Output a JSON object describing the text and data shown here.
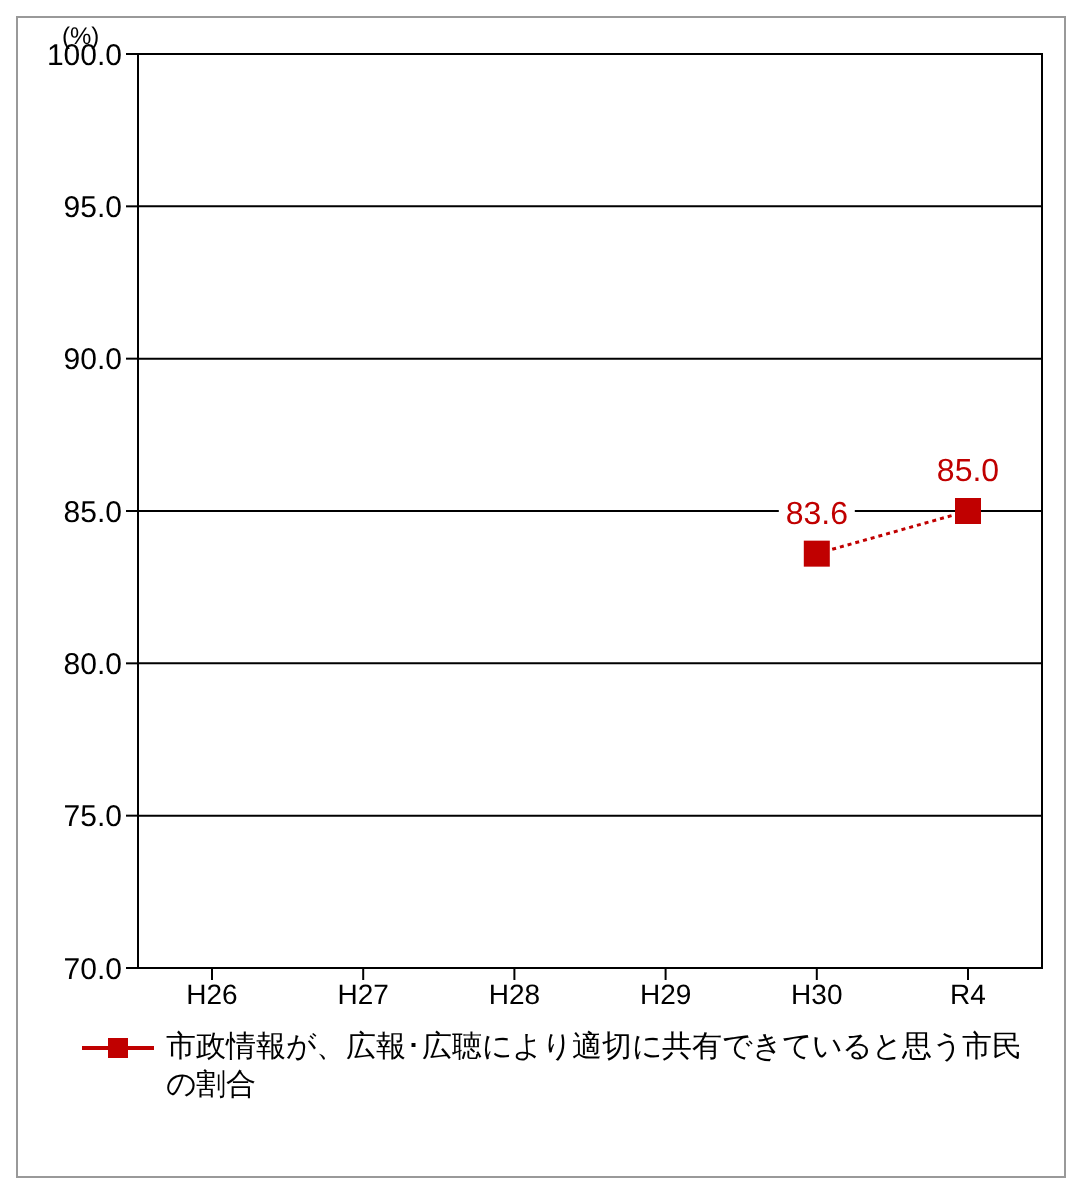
{
  "chart_data": {
    "type": "line",
    "ylabel": "(%)",
    "categories": [
      "H26",
      "H27",
      "H28",
      "H29",
      "H30",
      "R4"
    ],
    "series": [
      {
        "name": "市政情報が、広報･広聴により適切に共有できていると思う市民の割合",
        "color": "#c00000",
        "values": [
          null,
          null,
          null,
          null,
          83.6,
          85.0
        ],
        "value_labels": [
          null,
          null,
          null,
          null,
          "83.6",
          "85.0"
        ]
      }
    ],
    "ylim": [
      70,
      100
    ],
    "yticks": [
      {
        "value": 70,
        "label": "70.0"
      },
      {
        "value": 75,
        "label": "75.0"
      },
      {
        "value": 80,
        "label": "80.0"
      },
      {
        "value": 85,
        "label": "85.0"
      },
      {
        "value": 90,
        "label": "90.0"
      },
      {
        "value": 95,
        "label": "95.0"
      },
      {
        "value": 100,
        "label": "100.0"
      }
    ],
    "grid": "y",
    "legend": "bottom",
    "marker": "square",
    "line_style": "dotted"
  }
}
